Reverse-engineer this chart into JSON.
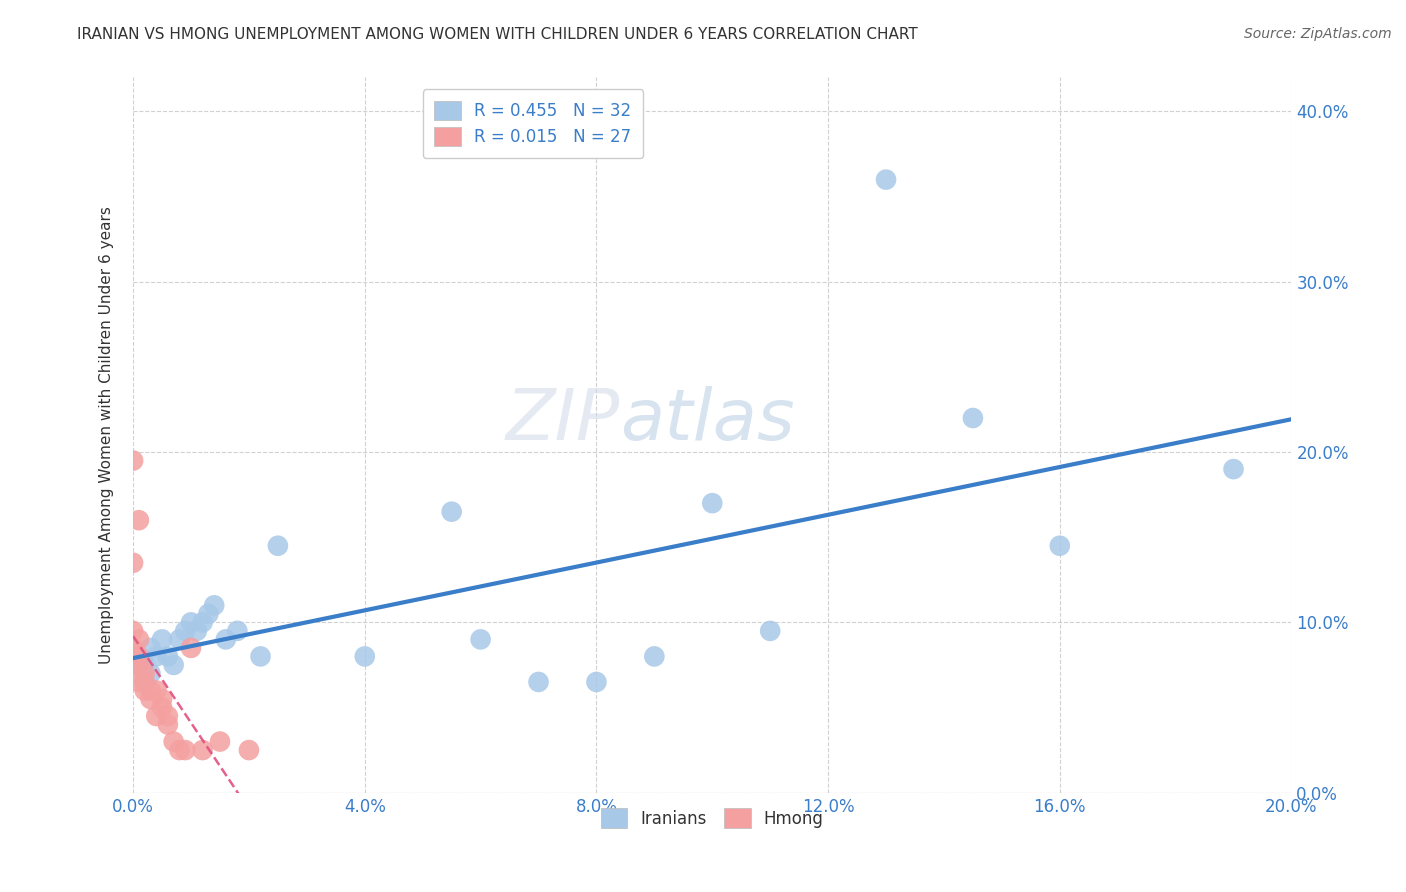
{
  "title": "IRANIAN VS HMONG UNEMPLOYMENT AMONG WOMEN WITH CHILDREN UNDER 6 YEARS CORRELATION CHART",
  "source": "Source: ZipAtlas.com",
  "ylabel": "Unemployment Among Women with Children Under 6 years",
  "xlim": [
    0.0,
    0.2
  ],
  "ylim": [
    0.0,
    0.42
  ],
  "xticks": [
    0.0,
    0.04,
    0.08,
    0.12,
    0.16,
    0.2
  ],
  "yticks": [
    0.0,
    0.1,
    0.2,
    0.3,
    0.4
  ],
  "iranians_x": [
    0.001,
    0.002,
    0.002,
    0.003,
    0.003,
    0.004,
    0.005,
    0.006,
    0.007,
    0.008,
    0.009,
    0.01,
    0.011,
    0.012,
    0.013,
    0.014,
    0.016,
    0.018,
    0.022,
    0.025,
    0.04,
    0.055,
    0.06,
    0.07,
    0.08,
    0.09,
    0.1,
    0.11,
    0.13,
    0.145,
    0.16,
    0.19
  ],
  "iranians_y": [
    0.075,
    0.065,
    0.075,
    0.07,
    0.085,
    0.08,
    0.09,
    0.08,
    0.075,
    0.09,
    0.095,
    0.1,
    0.095,
    0.1,
    0.105,
    0.11,
    0.09,
    0.095,
    0.08,
    0.145,
    0.08,
    0.165,
    0.09,
    0.065,
    0.065,
    0.08,
    0.17,
    0.095,
    0.36,
    0.22,
    0.145,
    0.19
  ],
  "hmong_x": [
    0.0,
    0.0,
    0.0,
    0.0,
    0.001,
    0.001,
    0.001,
    0.001,
    0.001,
    0.002,
    0.002,
    0.002,
    0.003,
    0.003,
    0.004,
    0.004,
    0.005,
    0.005,
    0.006,
    0.006,
    0.007,
    0.008,
    0.009,
    0.01,
    0.012,
    0.015,
    0.02
  ],
  "hmong_y": [
    0.195,
    0.135,
    0.095,
    0.085,
    0.16,
    0.09,
    0.08,
    0.075,
    0.065,
    0.07,
    0.065,
    0.06,
    0.06,
    0.055,
    0.06,
    0.045,
    0.055,
    0.05,
    0.045,
    0.04,
    0.03,
    0.025,
    0.025,
    0.085,
    0.025,
    0.03,
    0.025
  ],
  "iranian_R": 0.455,
  "iranian_N": 32,
  "hmong_R": 0.015,
  "hmong_N": 27,
  "iranian_color": "#a8c8e8",
  "hmong_color": "#f4a0a0",
  "iranian_line_color": "#3a7dc9",
  "hmong_line_color": "#e05080",
  "background_color": "#ffffff",
  "grid_color": "#cccccc",
  "watermark_zip": "ZIP",
  "watermark_atlas": "atlas",
  "legend_R_color": "#3a7dc9",
  "legend_N_color": "#e03030"
}
